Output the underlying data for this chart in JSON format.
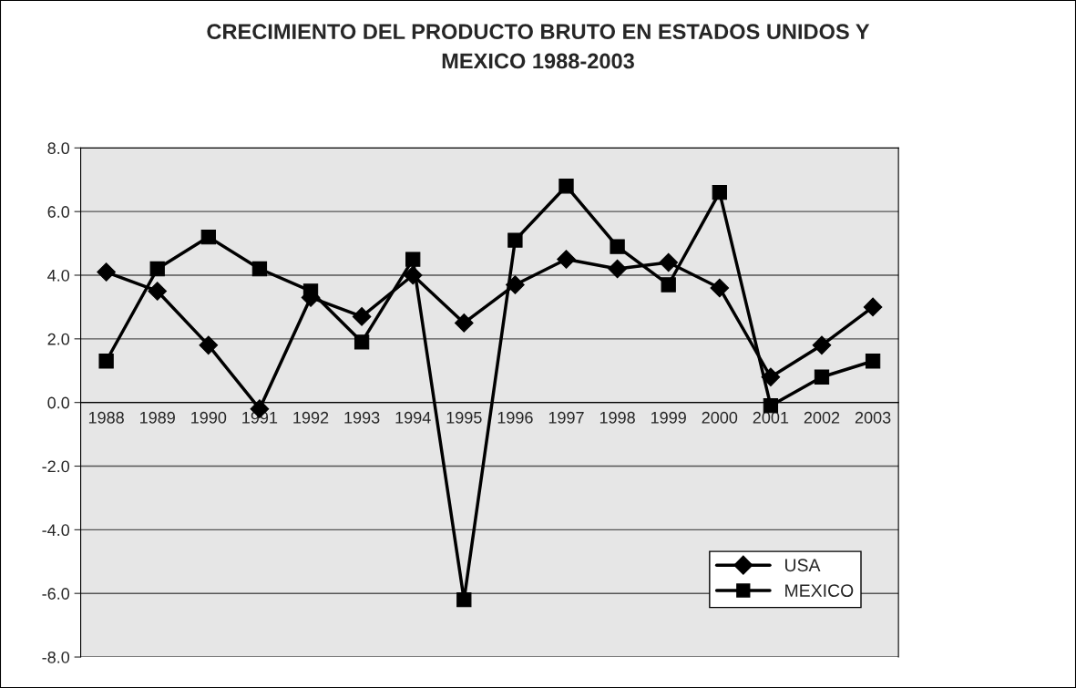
{
  "chart_data": {
    "type": "line",
    "title": "CRECIMIENTO DEL PRODUCTO BRUTO EN ESTADOS UNIDOS Y\nMEXICO 1988-2003",
    "categories": [
      "1988",
      "1989",
      "1990",
      "1991",
      "1992",
      "1993",
      "1994",
      "1995",
      "1996",
      "1997",
      "1998",
      "1999",
      "2000",
      "2001",
      "2002",
      "2003"
    ],
    "series": [
      {
        "name": "USA",
        "color": "#000000",
        "marker": "diamond",
        "values": [
          4.1,
          3.5,
          1.8,
          -0.2,
          3.3,
          2.7,
          4.0,
          2.5,
          3.7,
          4.5,
          4.2,
          4.4,
          3.6,
          0.8,
          1.8,
          3.0
        ]
      },
      {
        "name": "MEXICO",
        "color": "#000000",
        "marker": "square",
        "values": [
          1.3,
          4.2,
          5.2,
          4.2,
          3.5,
          1.9,
          4.5,
          -6.2,
          5.1,
          6.8,
          4.9,
          3.7,
          6.6,
          -0.1,
          0.8,
          1.3
        ]
      }
    ],
    "ylim": [
      -8.0,
      8.0
    ],
    "yticks": [
      {
        "value": -8,
        "label": "-8.0"
      },
      {
        "value": -6,
        "label": "-6.0"
      },
      {
        "value": -4,
        "label": "-4.0"
      },
      {
        "value": -2,
        "label": "-2.0"
      },
      {
        "value": 0,
        "label": "0.0"
      },
      {
        "value": 2,
        "label": "2.0"
      },
      {
        "value": 4,
        "label": "4.0"
      },
      {
        "value": 6,
        "label": "6.0"
      },
      {
        "value": 8,
        "label": "8.0"
      }
    ],
    "grid": "y",
    "legend": "bottom right",
    "line_style": "solid"
  }
}
